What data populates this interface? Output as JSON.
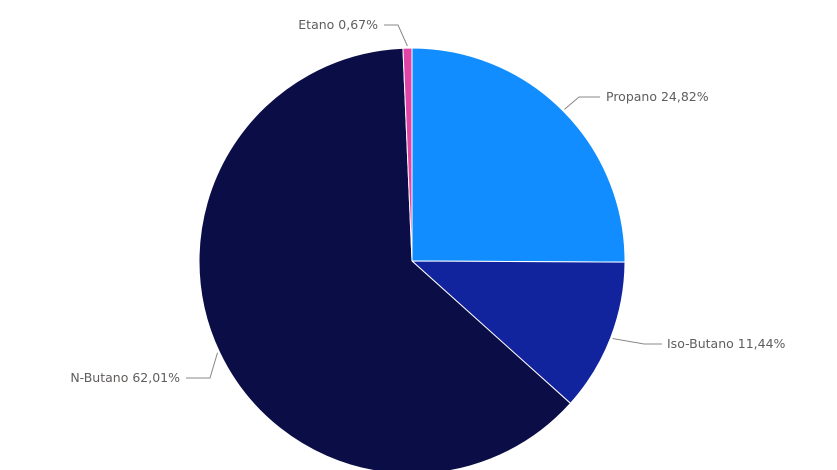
{
  "chart_data": {
    "type": "pie",
    "title": "",
    "start_angle_deg": 0,
    "direction": "clockwise",
    "legend": "none",
    "slices": [
      {
        "name": "Propano",
        "value": 24.82,
        "label": "24,82%",
        "color": "#118dff"
      },
      {
        "name": "Iso-Butano",
        "value": 11.44,
        "label": "11,44%",
        "color": "#12239e"
      },
      {
        "name": "N-Butano",
        "value": 62.01,
        "label": "62,01%",
        "color": "#0b0e46"
      },
      {
        "name": "Etano",
        "value": 0.67,
        "label": "0,67%",
        "color": "#e044a7"
      }
    ]
  }
}
